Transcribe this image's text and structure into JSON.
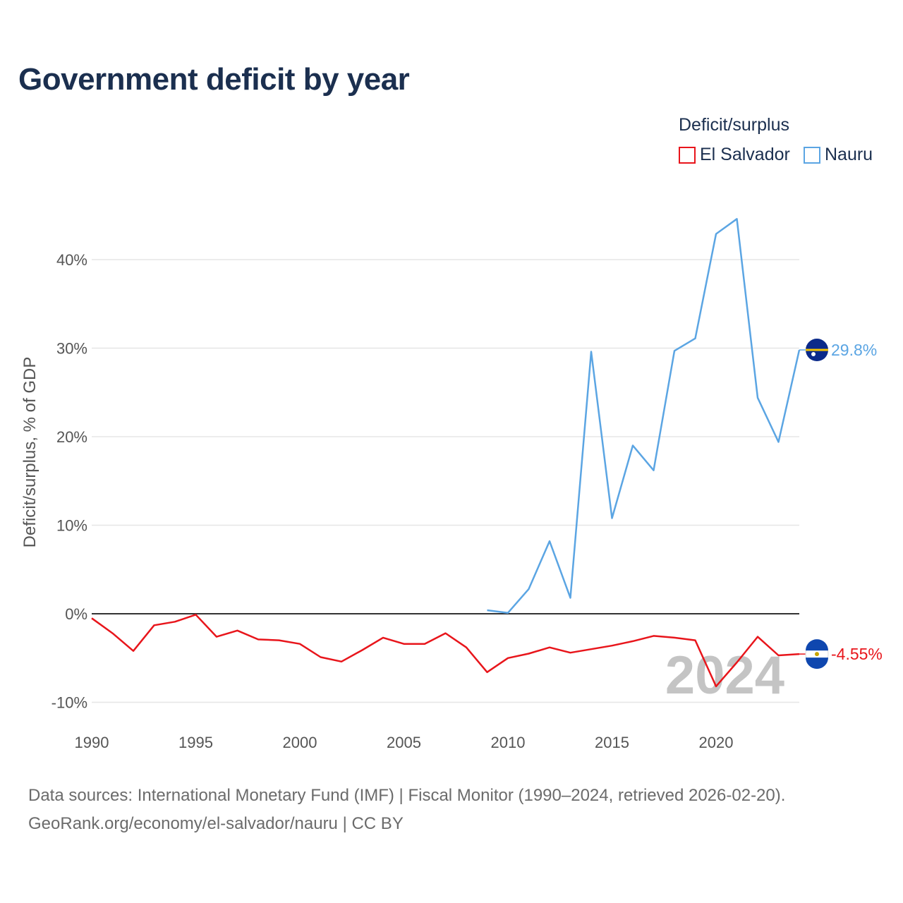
{
  "title": "Government deficit by year",
  "legend": {
    "title": "Deficit/surplus",
    "items": [
      {
        "label": "El Salvador",
        "color": "#e8151b"
      },
      {
        "label": "Nauru",
        "color": "#5ba5e3"
      }
    ]
  },
  "source": {
    "line1": "Data sources: International Monetary Fund (IMF) | Fiscal Monitor (1990–2024, retrieved 2026-02-20).",
    "line2": "GeoRank.org/economy/el-salvador/nauru | CC BY"
  },
  "chart_data": {
    "type": "line",
    "title": "Government deficit by year",
    "xlabel": "",
    "ylabel": "Deficit/surplus, % of GDP",
    "xlim": [
      1990,
      2024
    ],
    "ylim": [
      -10,
      45
    ],
    "x_ticks": [
      1990,
      1995,
      2000,
      2005,
      2010,
      2015,
      2020
    ],
    "x_tick_labels": [
      "1990",
      "1995",
      "2000",
      "2005",
      "2010",
      "2015",
      "2020"
    ],
    "y_ticks": [
      -10,
      0,
      10,
      20,
      30,
      40
    ],
    "y_tick_labels": [
      "-10%",
      "0%",
      "10%",
      "20%",
      "30%",
      "40%"
    ],
    "grid": true,
    "legend_position": "top-right",
    "current_year_label": "2024",
    "series": [
      {
        "name": "El Salvador",
        "color": "#e8151b",
        "end_label": "-4.55%",
        "points": [
          [
            1990,
            -0.5
          ],
          [
            1991,
            -2.2
          ],
          [
            1992,
            -4.2
          ],
          [
            1993,
            -1.3
          ],
          [
            1994,
            -0.9
          ],
          [
            1995,
            -0.1
          ],
          [
            1996,
            -2.6
          ],
          [
            1997,
            -1.9
          ],
          [
            1998,
            -2.9
          ],
          [
            1999,
            -3.0
          ],
          [
            2000,
            -3.4
          ],
          [
            2001,
            -4.9
          ],
          [
            2002,
            -5.4
          ],
          [
            2003,
            -4.1
          ],
          [
            2004,
            -2.7
          ],
          [
            2005,
            -3.4
          ],
          [
            2006,
            -3.4
          ],
          [
            2007,
            -2.2
          ],
          [
            2008,
            -3.8
          ],
          [
            2009,
            -6.6
          ],
          [
            2010,
            -5.0
          ],
          [
            2011,
            -4.5
          ],
          [
            2012,
            -3.8
          ],
          [
            2013,
            -4.4
          ],
          [
            2014,
            -4.0
          ],
          [
            2015,
            -3.6
          ],
          [
            2016,
            -3.1
          ],
          [
            2017,
            -2.5
          ],
          [
            2018,
            -2.7
          ],
          [
            2019,
            -3.0
          ],
          [
            2020,
            -8.2
          ],
          [
            2021,
            -5.5
          ],
          [
            2022,
            -2.6
          ],
          [
            2023,
            -4.7
          ],
          [
            2024,
            -4.55
          ]
        ]
      },
      {
        "name": "Nauru",
        "color": "#5ba5e3",
        "end_label": "29.8%",
        "points": [
          [
            2009,
            0.4
          ],
          [
            2010,
            0.1
          ],
          [
            2011,
            2.8
          ],
          [
            2012,
            8.2
          ],
          [
            2013,
            1.8
          ],
          [
            2014,
            29.6
          ],
          [
            2015,
            10.8
          ],
          [
            2016,
            19.0
          ],
          [
            2017,
            16.2
          ],
          [
            2018,
            29.7
          ],
          [
            2019,
            31.1
          ],
          [
            2020,
            42.9
          ],
          [
            2021,
            44.6
          ],
          [
            2022,
            24.4
          ],
          [
            2023,
            19.4
          ],
          [
            2024,
            29.8
          ]
        ]
      }
    ]
  }
}
